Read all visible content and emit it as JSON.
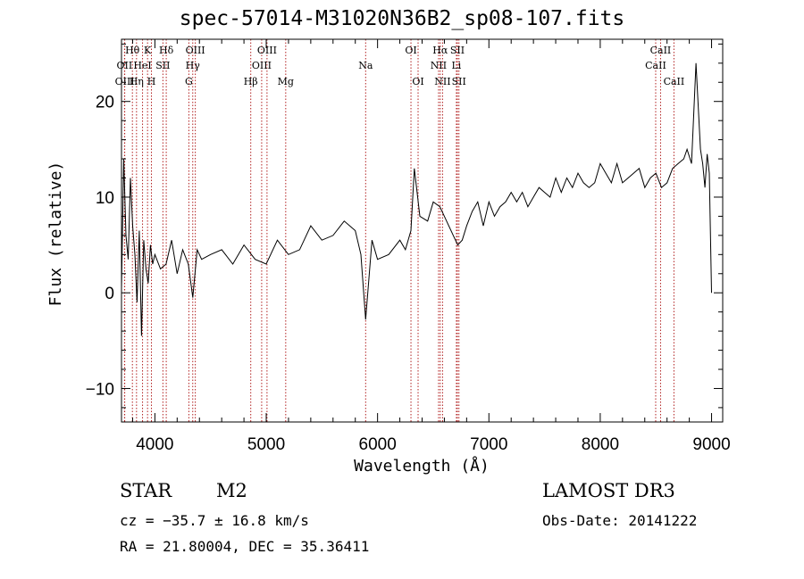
{
  "chart_data": {
    "type": "line",
    "title": "spec-57014-M31020N36B2_sp08-107.fits",
    "xlabel": "Wavelength (Å)",
    "ylabel": "Flux (relative)",
    "xlim": [
      3700,
      9100
    ],
    "ylim": [
      -13.5,
      26.5
    ],
    "x_ticks": [
      4000,
      5000,
      6000,
      7000,
      8000,
      9000
    ],
    "y_ticks": [
      -10,
      0,
      10,
      20
    ],
    "grid": false,
    "line_color": "#000000",
    "marker_color": "#b22222",
    "series": [
      {
        "x": [
          3700,
          3720,
          3740,
          3760,
          3780,
          3800,
          3820,
          3840,
          3860,
          3880,
          3900,
          3920,
          3940,
          3960,
          3980,
          4000,
          4050,
          4100,
          4150,
          4200,
          4250,
          4300,
          4340,
          4380,
          4420,
          4500,
          4600,
          4700,
          4800,
          4900,
          5000,
          5100,
          5200,
          5300,
          5400,
          5500,
          5600,
          5700,
          5800,
          5850,
          5893,
          5950,
          6000,
          6100,
          6200,
          6250,
          6300,
          6330,
          6380,
          6450,
          6500,
          6560,
          6620,
          6680,
          6720,
          6760,
          6800,
          6850,
          6900,
          6950,
          7000,
          7050,
          7100,
          7150,
          7200,
          7250,
          7300,
          7350,
          7400,
          7450,
          7500,
          7550,
          7600,
          7650,
          7700,
          7750,
          7800,
          7850,
          7900,
          7950,
          8000,
          8050,
          8100,
          8150,
          8200,
          8250,
          8300,
          8350,
          8400,
          8450,
          8500,
          8550,
          8600,
          8650,
          8700,
          8750,
          8780,
          8820,
          8860,
          8900,
          8920,
          8940,
          8960,
          8980,
          9000
        ],
        "y": [
          0.5,
          14.0,
          6.0,
          3.5,
          12.0,
          7.0,
          4.0,
          -1.0,
          6.5,
          -4.5,
          5.5,
          2.5,
          1.0,
          5.0,
          3.0,
          4.0,
          2.5,
          3.0,
          5.5,
          2.0,
          4.5,
          3.0,
          -0.5,
          4.5,
          3.5,
          4.0,
          4.5,
          3.0,
          5.0,
          3.5,
          3.0,
          5.5,
          4.0,
          4.5,
          7.0,
          5.5,
          6.0,
          7.5,
          6.5,
          4.0,
          -2.8,
          5.5,
          3.5,
          4.0,
          5.5,
          4.5,
          6.5,
          13.0,
          8.0,
          7.5,
          9.5,
          9.0,
          7.5,
          6.0,
          5.0,
          5.5,
          7.0,
          8.5,
          9.5,
          7.0,
          9.5,
          8.0,
          9.0,
          9.5,
          10.5,
          9.5,
          10.5,
          9.0,
          10.0,
          11.0,
          10.5,
          10.0,
          12.0,
          10.5,
          12.0,
          11.0,
          12.5,
          11.5,
          11.0,
          11.5,
          13.5,
          12.5,
          11.5,
          13.5,
          11.5,
          12.0,
          12.5,
          13.0,
          11.0,
          12.0,
          12.5,
          11.0,
          11.5,
          13.0,
          13.5,
          14.0,
          15.0,
          13.5,
          24.0,
          15.0,
          13.5,
          11.0,
          14.5,
          12.5,
          0.0
        ]
      }
    ],
    "lines": [
      {
        "label": "Hθ",
        "x": 3798,
        "row": 1
      },
      {
        "label": "OII",
        "x": 3727,
        "row": 2
      },
      {
        "label": "OIII",
        "x": 3729,
        "row": 3
      },
      {
        "label": "HeI",
        "x": 3889,
        "row": 2
      },
      {
        "label": "Hη",
        "x": 3835,
        "row": 3
      },
      {
        "label": "K",
        "x": 3934,
        "row": 1
      },
      {
        "label": "H",
        "x": 3969,
        "row": 3
      },
      {
        "label": "SII",
        "x": 4072,
        "row": 2
      },
      {
        "label": "Hδ",
        "x": 4102,
        "row": 1
      },
      {
        "label": "OIII",
        "x": 4363,
        "row": 1
      },
      {
        "label": "Hγ",
        "x": 4340,
        "row": 2
      },
      {
        "label": "G",
        "x": 4305,
        "row": 3
      },
      {
        "label": "Hβ",
        "x": 4861,
        "row": 3
      },
      {
        "label": "OIII",
        "x": 5007,
        "row": 1
      },
      {
        "label": "OIII",
        "x": 4959,
        "row": 2
      },
      {
        "label": "Mg",
        "x": 5175,
        "row": 3
      },
      {
        "label": "Na",
        "x": 5893,
        "row": 2
      },
      {
        "label": "OI",
        "x": 6300,
        "row": 1
      },
      {
        "label": "OI",
        "x": 6364,
        "row": 3
      },
      {
        "label": "Hα",
        "x": 6563,
        "row": 1
      },
      {
        "label": "NII",
        "x": 6548,
        "row": 2
      },
      {
        "label": "NII",
        "x": 6584,
        "row": 3
      },
      {
        "label": "SII",
        "x": 6717,
        "row": 1
      },
      {
        "label": "Li",
        "x": 6708,
        "row": 2
      },
      {
        "label": "SII",
        "x": 6731,
        "row": 3
      },
      {
        "label": "CaII",
        "x": 8542,
        "row": 1
      },
      {
        "label": "CaII",
        "x": 8498,
        "row": 2
      },
      {
        "label": "CaII",
        "x": 8662,
        "row": 3
      }
    ]
  },
  "info": {
    "object_class": "STAR",
    "subclass": "M2",
    "survey": "LAMOST DR3",
    "cz": "cz = −35.7 ± 16.8 km/s",
    "obs_date": "Obs-Date: 20141222",
    "radec": "RA =  21.80004, DEC =  35.36411"
  }
}
